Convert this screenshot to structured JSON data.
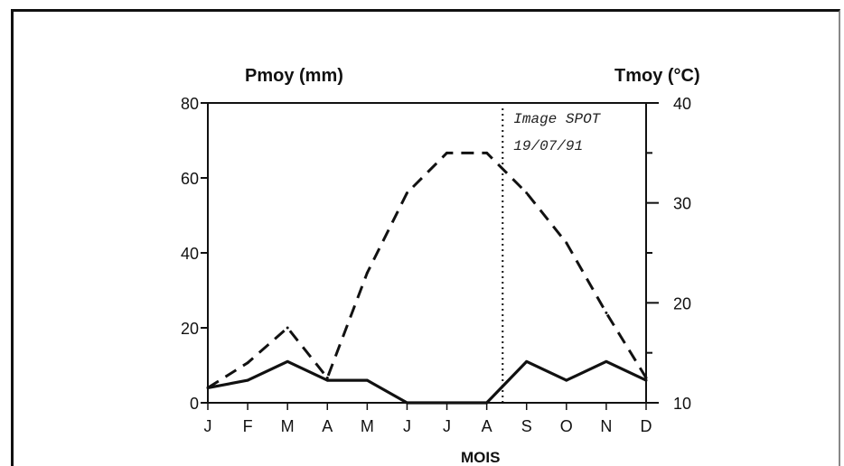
{
  "chart_data": {
    "type": "line",
    "xlabel": "MOIS",
    "categories": [
      "J",
      "F",
      "M",
      "A",
      "M",
      "J",
      "J",
      "A",
      "S",
      "O",
      "N",
      "D"
    ],
    "y_left": {
      "label": "Pmoy (mm)",
      "range": [
        0,
        80
      ],
      "ticks": [
        0,
        20,
        40,
        60,
        80
      ]
    },
    "y_right": {
      "label": "Tmoy (°C)",
      "range": [
        10,
        40
      ],
      "ticks": [
        10,
        20,
        30,
        40
      ]
    },
    "series": [
      {
        "axis": "left",
        "style": "solid",
        "values": [
          4,
          6,
          11,
          6,
          6,
          0,
          0,
          0,
          11,
          6,
          11,
          6
        ]
      },
      {
        "axis": "right",
        "style": "dashed",
        "values": [
          11.5,
          14,
          17.5,
          12.5,
          23,
          31,
          35,
          35,
          31,
          26,
          19,
          12.5
        ]
      }
    ],
    "annotation": {
      "lines": [
        "Image SPOT",
        "19/07/91"
      ],
      "x": 7.4
    },
    "grid": false
  }
}
